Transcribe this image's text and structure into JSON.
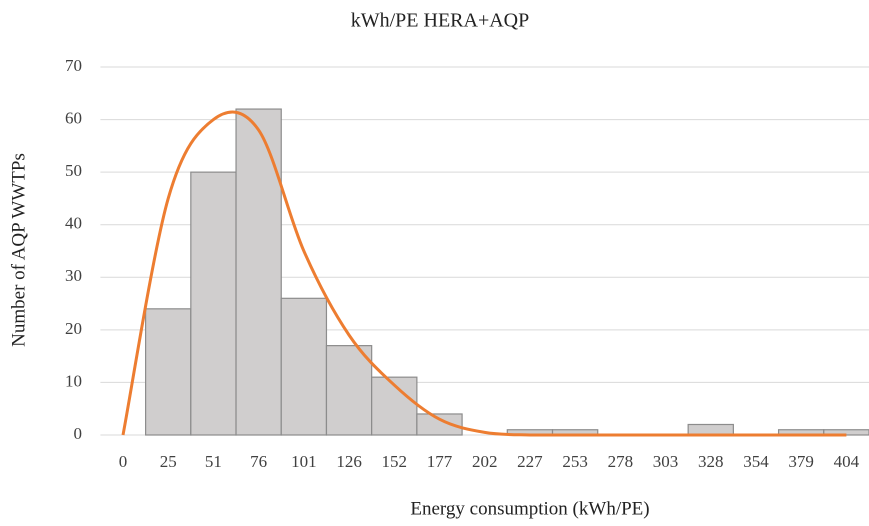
{
  "chart_data": {
    "type": "bar",
    "title": "kWh/PE HERA+AQP",
    "x_label": "Energy consumption (kWh/PE)",
    "y_label": "Number of AQP WWTPs",
    "categories": [
      "0",
      "25",
      "51",
      "76",
      "101",
      "126",
      "152",
      "177",
      "202",
      "227",
      "253",
      "278",
      "303",
      "328",
      "354",
      "379",
      "404"
    ],
    "series": [
      {
        "type": "bar",
        "color": "#d0cece",
        "values": [
          0,
          24,
          50,
          62,
          26,
          17,
          11,
          4,
          0,
          1,
          1,
          0,
          0,
          2,
          0,
          1,
          1
        ]
      },
      {
        "type": "line",
        "color": "#ed7d31",
        "values": [
          0,
          45,
          60,
          58,
          35,
          19,
          9.5,
          3,
          0.5,
          0,
          0,
          0,
          0,
          0,
          0,
          0,
          0
        ]
      }
    ],
    "ylim": [
      0,
      70
    ],
    "yticks": [
      0,
      10,
      20,
      30,
      40,
      50,
      60,
      70
    ],
    "grid": true
  }
}
